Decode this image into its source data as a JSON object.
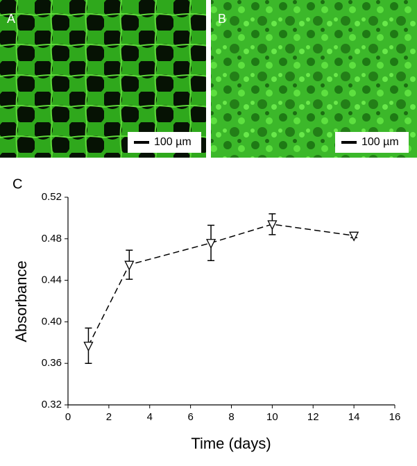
{
  "panels": {
    "a": {
      "label": "A",
      "scale_bar": "100 µm"
    },
    "b": {
      "label": "B",
      "scale_bar": "100 µm"
    },
    "c": {
      "label": "C"
    }
  },
  "chart_data": {
    "type": "line",
    "xlabel": "Time (days)",
    "ylabel": "Absorbance",
    "x": [
      1,
      3,
      7,
      10,
      14
    ],
    "values": [
      0.377,
      0.455,
      0.476,
      0.494,
      0.483
    ],
    "errors": [
      0.017,
      0.014,
      0.017,
      0.01,
      0.002
    ],
    "color": "#000000",
    "line_style": "dashed",
    "marker": "triangle-down",
    "xlim": [
      0,
      16
    ],
    "xticks": [
      0,
      2,
      4,
      6,
      8,
      10,
      12,
      14,
      16
    ],
    "ylim": [
      0.32,
      0.52
    ],
    "yticks": [
      0.32,
      0.36,
      {
        "value": 0.4,
        "label": "0.40"
      },
      0.44,
      0.48,
      0.52
    ],
    "grid": false
  }
}
